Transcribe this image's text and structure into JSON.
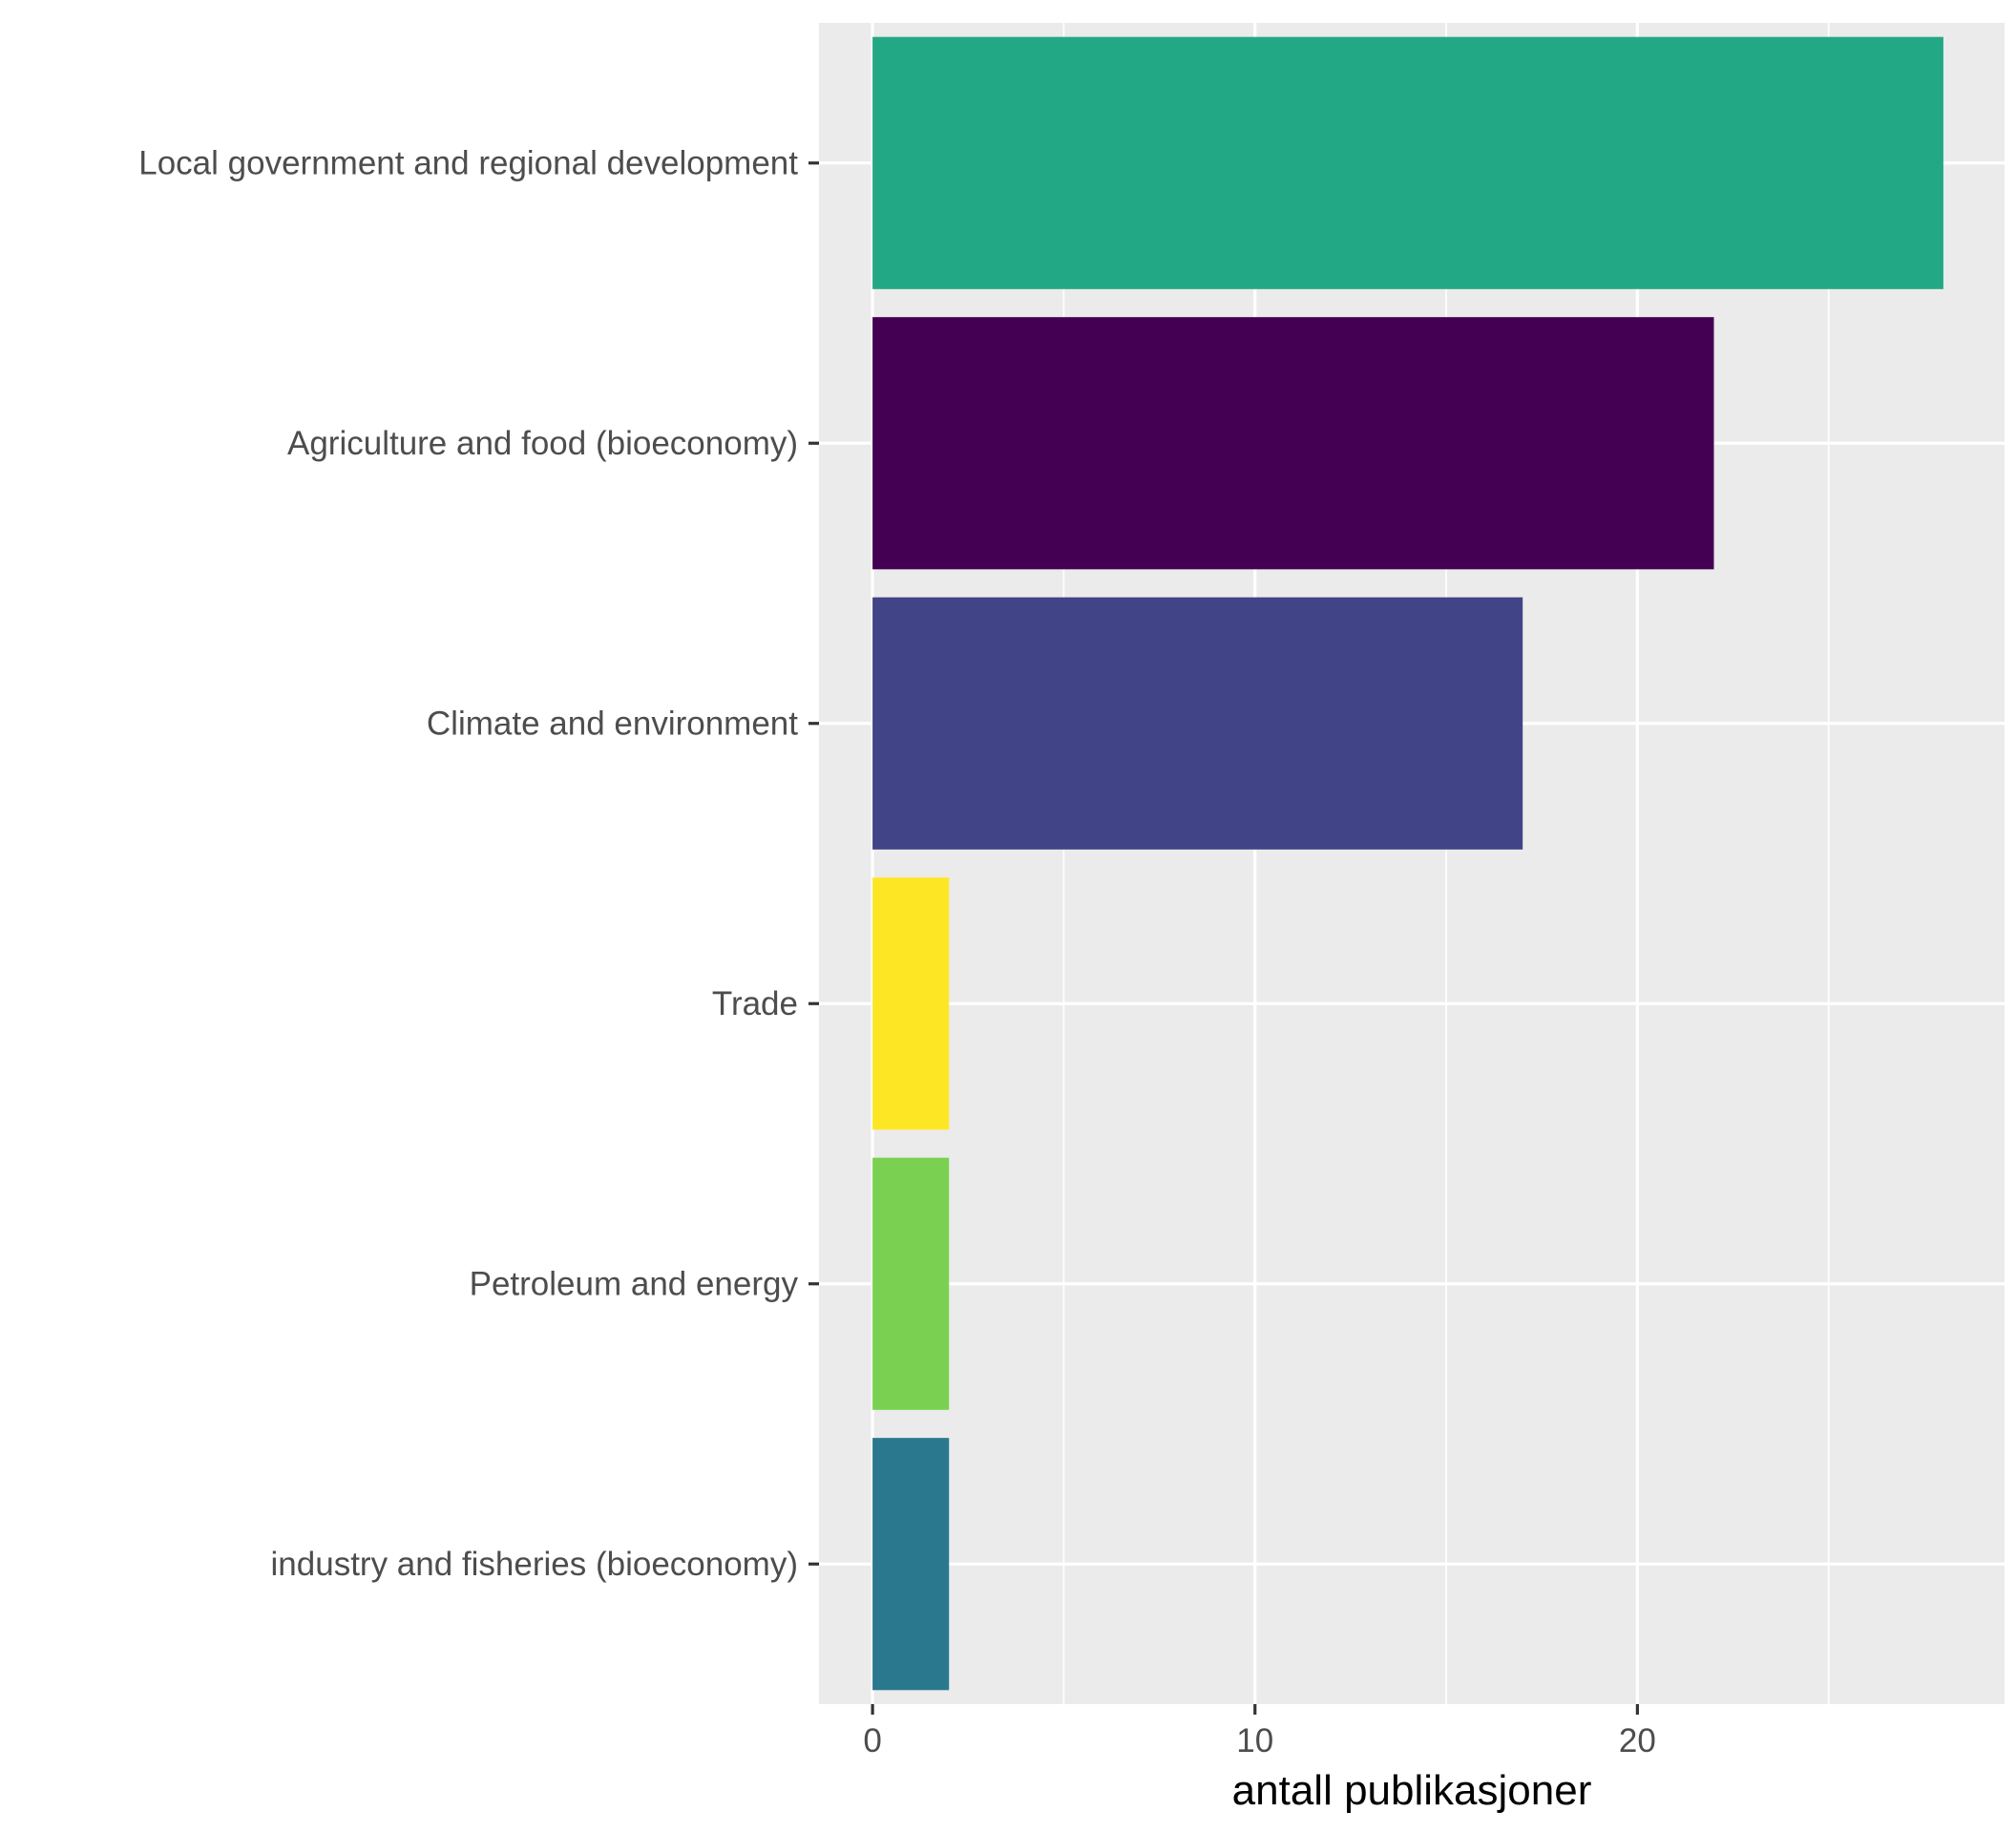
{
  "chart_data": {
    "type": "bar",
    "orientation": "horizontal",
    "title": "",
    "xlabel": "antall publikasjoner",
    "ylabel": "",
    "xlim": [
      -1.4,
      29.6
    ],
    "xticks": [
      0,
      10,
      20
    ],
    "xtick_labels": [
      "0",
      "10",
      "20"
    ],
    "grid": true,
    "legend": "none",
    "categories": [
      "Local government and regional development",
      "Agriculture and food (bioeconomy)",
      "Climate and environment",
      "Trade",
      "Petroleum and energy",
      "industry and fisheries (bioeconomy)"
    ],
    "values": [
      28,
      22,
      17,
      2,
      2,
      2
    ],
    "colors": [
      "#22A884",
      "#440154",
      "#414487",
      "#FDE725",
      "#7AD151",
      "#2A788E"
    ],
    "panel_background": "#EBEBEB",
    "grid_color": "#FFFFFF"
  }
}
